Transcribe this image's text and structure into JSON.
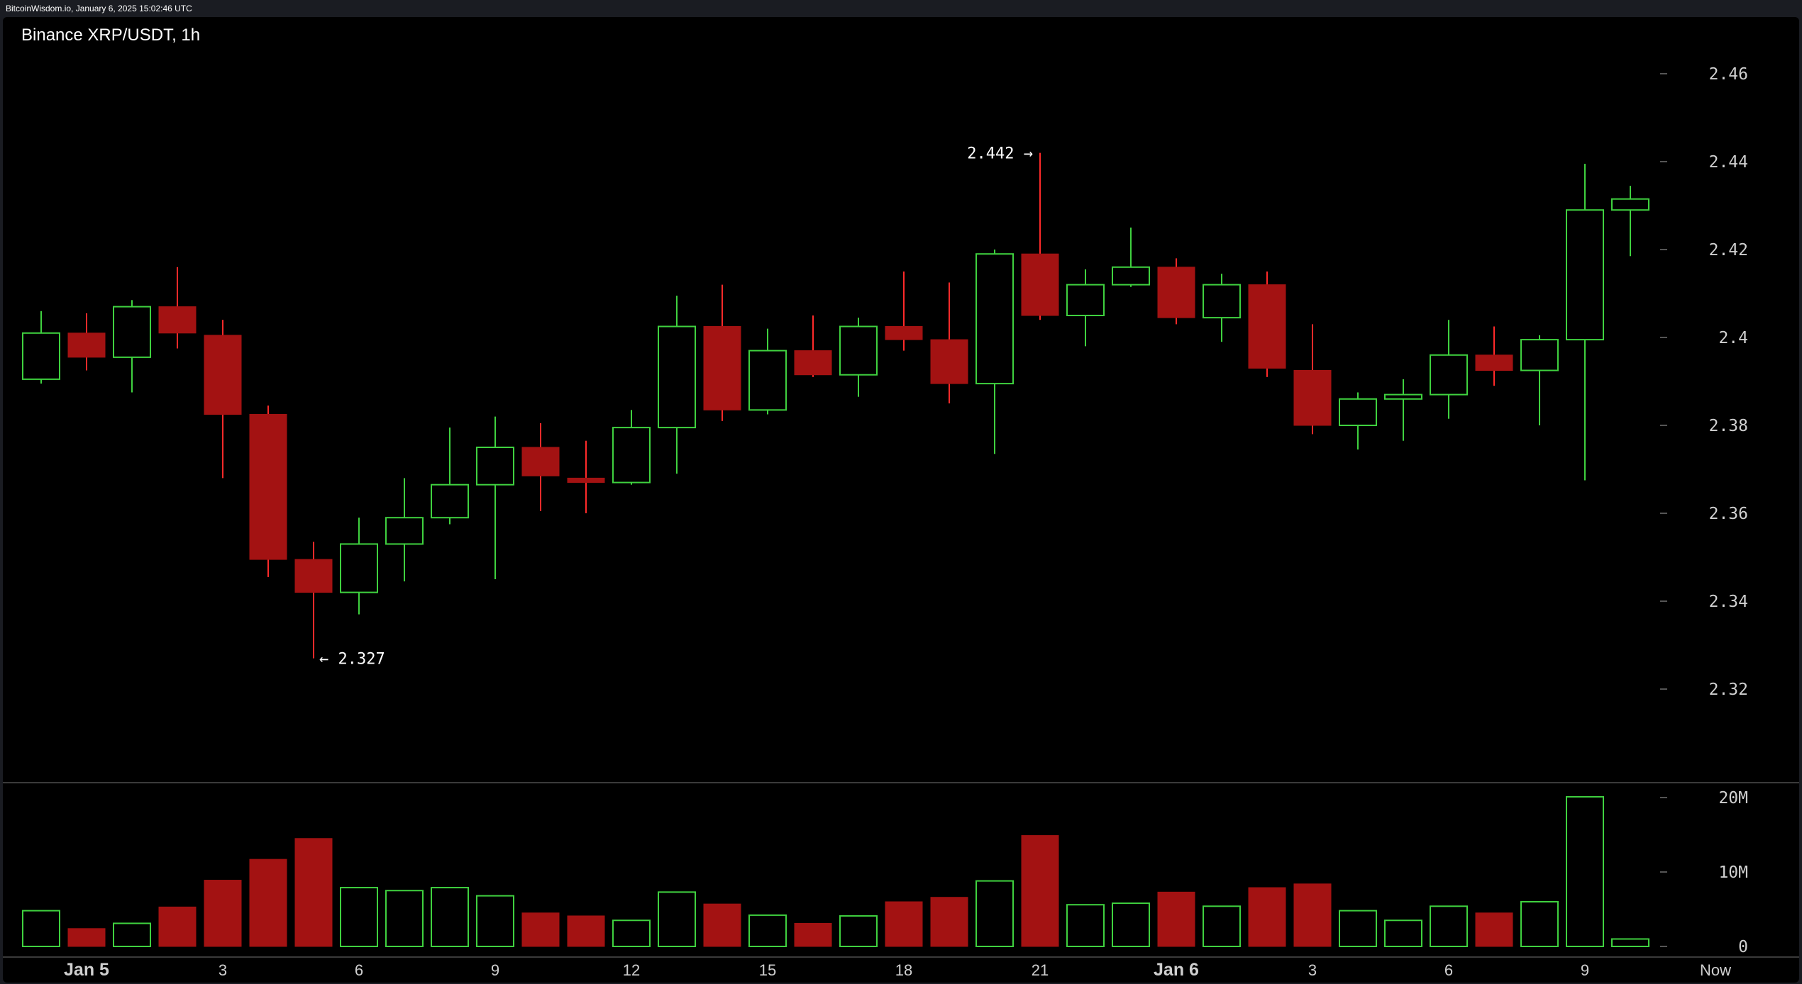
{
  "header": {
    "timestamp": "BitcoinWisdom.io, January 6, 2025 15:02:46 UTC",
    "title": "Binance XRP/USDT, 1h"
  },
  "colors": {
    "up": "#3fd13f",
    "down": "#a31212",
    "down_wick": "#ff2a2a",
    "axis_text": "#cfcfcf",
    "grid_tick": "#555555",
    "separator": "#3a3a3a"
  },
  "chart_data": [
    {
      "type": "candlestick",
      "title": "Binance XRP/USDT, 1h",
      "ylim": [
        2.3,
        2.47
      ],
      "y_ticks": [
        "2.46",
        "2.44",
        "2.42",
        "2.4",
        "2.38",
        "2.36",
        "2.34",
        "2.32"
      ],
      "x_ticks": [
        {
          "label": "Jan 5",
          "index": 1
        },
        {
          "label": "3",
          "index": 4
        },
        {
          "label": "6",
          "index": 7
        },
        {
          "label": "9",
          "index": 10
        },
        {
          "label": "12",
          "index": 13
        },
        {
          "label": "15",
          "index": 16
        },
        {
          "label": "18",
          "index": 19
        },
        {
          "label": "21",
          "index": 22
        },
        {
          "label": "Jan 6",
          "index": 25
        },
        {
          "label": "3",
          "index": 28
        },
        {
          "label": "6",
          "index": 31
        },
        {
          "label": "9",
          "index": 34
        },
        {
          "label": "Now",
          "index": 37
        }
      ],
      "annotations": [
        {
          "text": "2.442 →",
          "candle": 22,
          "value": 2.442,
          "side": "left"
        },
        {
          "text": "← 2.327",
          "candle": 6,
          "value": 2.327,
          "side": "right"
        }
      ],
      "candles": [
        {
          "o": 2.3905,
          "h": 2.406,
          "l": 2.3895,
          "c": 2.401
        },
        {
          "o": 2.401,
          "h": 2.4055,
          "l": 2.3925,
          "c": 2.3955
        },
        {
          "o": 2.3955,
          "h": 2.4085,
          "l": 2.3875,
          "c": 2.407
        },
        {
          "o": 2.407,
          "h": 2.416,
          "l": 2.3975,
          "c": 2.401
        },
        {
          "o": 2.4005,
          "h": 2.404,
          "l": 2.368,
          "c": 2.3825
        },
        {
          "o": 2.3825,
          "h": 2.3845,
          "l": 2.3455,
          "c": 2.3495
        },
        {
          "o": 2.3495,
          "h": 2.3535,
          "l": 2.327,
          "c": 2.342
        },
        {
          "o": 2.342,
          "h": 2.359,
          "l": 2.337,
          "c": 2.353
        },
        {
          "o": 2.353,
          "h": 2.368,
          "l": 2.3445,
          "c": 2.359
        },
        {
          "o": 2.359,
          "h": 2.3795,
          "l": 2.3575,
          "c": 2.3665
        },
        {
          "o": 2.3665,
          "h": 2.382,
          "l": 2.345,
          "c": 2.375
        },
        {
          "o": 2.375,
          "h": 2.3805,
          "l": 2.3605,
          "c": 2.3685
        },
        {
          "o": 2.368,
          "h": 2.3765,
          "l": 2.36,
          "c": 2.367
        },
        {
          "o": 2.367,
          "h": 2.3835,
          "l": 2.3665,
          "c": 2.3795
        },
        {
          "o": 2.3795,
          "h": 2.4095,
          "l": 2.369,
          "c": 2.4025
        },
        {
          "o": 2.4025,
          "h": 2.412,
          "l": 2.381,
          "c": 2.3835
        },
        {
          "o": 2.3835,
          "h": 2.402,
          "l": 2.3825,
          "c": 2.397
        },
        {
          "o": 2.397,
          "h": 2.405,
          "l": 2.391,
          "c": 2.3915
        },
        {
          "o": 2.3915,
          "h": 2.4045,
          "l": 2.3865,
          "c": 2.4025
        },
        {
          "o": 2.4025,
          "h": 2.415,
          "l": 2.397,
          "c": 2.3995
        },
        {
          "o": 2.3995,
          "h": 2.4125,
          "l": 2.385,
          "c": 2.3895
        },
        {
          "o": 2.3895,
          "h": 2.42,
          "l": 2.3735,
          "c": 2.419
        },
        {
          "o": 2.419,
          "h": 2.442,
          "l": 2.404,
          "c": 2.405
        },
        {
          "o": 2.405,
          "h": 2.4155,
          "l": 2.398,
          "c": 2.412
        },
        {
          "o": 2.412,
          "h": 2.425,
          "l": 2.4115,
          "c": 2.416
        },
        {
          "o": 2.416,
          "h": 2.418,
          "l": 2.403,
          "c": 2.4045
        },
        {
          "o": 2.4045,
          "h": 2.4145,
          "l": 2.399,
          "c": 2.412
        },
        {
          "o": 2.412,
          "h": 2.415,
          "l": 2.391,
          "c": 2.393
        },
        {
          "o": 2.3925,
          "h": 2.403,
          "l": 2.378,
          "c": 2.38
        },
        {
          "o": 2.38,
          "h": 2.3875,
          "l": 2.3745,
          "c": 2.386
        },
        {
          "o": 2.386,
          "h": 2.3905,
          "l": 2.3765,
          "c": 2.387
        },
        {
          "o": 2.387,
          "h": 2.404,
          "l": 2.3815,
          "c": 2.396
        },
        {
          "o": 2.396,
          "h": 2.4025,
          "l": 2.389,
          "c": 2.3925
        },
        {
          "o": 2.3925,
          "h": 2.4005,
          "l": 2.38,
          "c": 2.3995
        },
        {
          "o": 2.3995,
          "h": 2.4395,
          "l": 2.3675,
          "c": 2.429
        },
        {
          "o": 2.429,
          "h": 2.4345,
          "l": 2.4185,
          "c": 2.4315
        }
      ]
    },
    {
      "type": "bar",
      "title": "Volume",
      "ylim": [
        0,
        20000000
      ],
      "y_ticks": [
        "20M",
        "10M",
        "0"
      ],
      "values": [
        4800000,
        2400000,
        3100000,
        5300000,
        8900000,
        11700000,
        14500000,
        7900000,
        7500000,
        7900000,
        6800000,
        4500000,
        4100000,
        3500000,
        7300000,
        5700000,
        4200000,
        3100000,
        4100000,
        6000000,
        6600000,
        8800000,
        14900000,
        5600000,
        5800000,
        7300000,
        5400000,
        7900000,
        8400000,
        4800000,
        3500000,
        5400000,
        4500000,
        6000000,
        20100000,
        1000000
      ]
    }
  ]
}
